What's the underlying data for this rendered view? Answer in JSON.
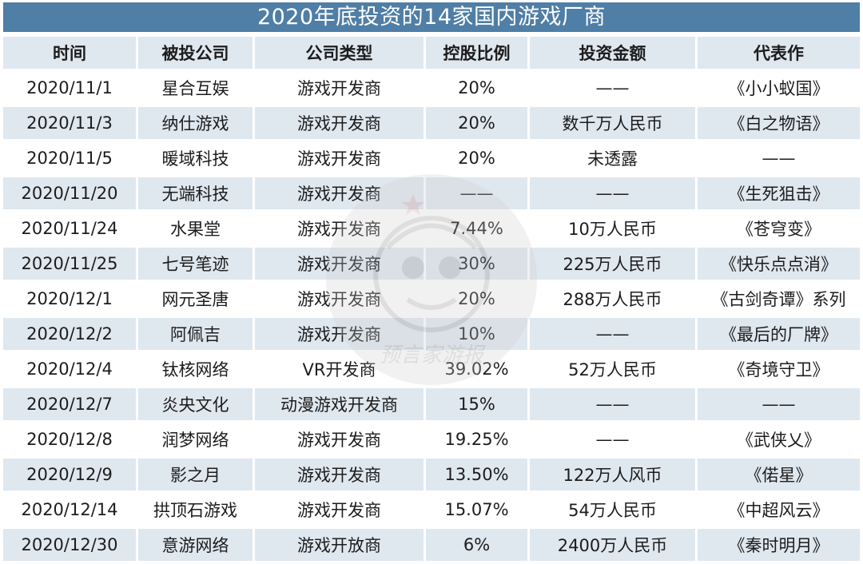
{
  "title": "2020年底投资的14家国内游戏厂商",
  "table": {
    "headers": [
      "时间",
      "被投公司",
      "公司类型",
      "控股比例",
      "投资金额",
      "代表作"
    ],
    "rows": [
      [
        "2020/11/1",
        "星合互娱",
        "游戏开发商",
        "20%",
        "——",
        "《小小蚁国》"
      ],
      [
        "2020/11/3",
        "纳仕游戏",
        "游戏开发商",
        "20%",
        "数千万人民币",
        "《白之物语》"
      ],
      [
        "2020/11/5",
        "暖域科技",
        "游戏开发商",
        "20%",
        "未透露",
        "——"
      ],
      [
        "2020/11/20",
        "无端科技",
        "游戏开发商",
        "——",
        "——",
        "《生死狙击》"
      ],
      [
        "2020/11/24",
        "水果堂",
        "游戏开发商",
        "7.44%",
        "10万人民币",
        "《苍穹变》"
      ],
      [
        "2020/11/25",
        "七号笔迹",
        "游戏开发商",
        "30%",
        "225万人民币",
        "《快乐点点消》"
      ],
      [
        "2020/12/1",
        "网元圣唐",
        "游戏开发商",
        "20%",
        "288万人民币",
        "《古剑奇谭》系列"
      ],
      [
        "2020/12/2",
        "阿佩吉",
        "游戏开发商",
        "10%",
        "——",
        "《最后的厂牌》"
      ],
      [
        "2020/12/4",
        "钛核网络",
        "VR开发商",
        "39.02%",
        "52万人民币",
        "《奇境守卫》"
      ],
      [
        "2020/12/7",
        "炎央文化",
        "动漫游戏开发商",
        "15%",
        "——",
        "——"
      ],
      [
        "2020/12/8",
        "润梦网络",
        "游戏开发商",
        "19.25%",
        "——",
        "《武侠乂》"
      ],
      [
        "2020/12/9",
        "影之月",
        "游戏开发商",
        "13.50%",
        "122万人风币",
        "《偌星》"
      ],
      [
        "2020/12/14",
        "拱顶石游戏",
        "游戏开发商",
        "15.07%",
        "54万人民币",
        "《中超风云》"
      ],
      [
        "2020/12/30",
        "意游网络",
        "游戏开放商",
        "6%",
        "2400万人民币",
        "《秦时明月》"
      ]
    ]
  },
  "watermark": {
    "text": "预言家游报",
    "icon": "cartoon-mascot-logo"
  },
  "colors": {
    "header_bar": "#4f7ea6",
    "row_shade": "#dfe7ef",
    "text": "#1c1c1c"
  }
}
